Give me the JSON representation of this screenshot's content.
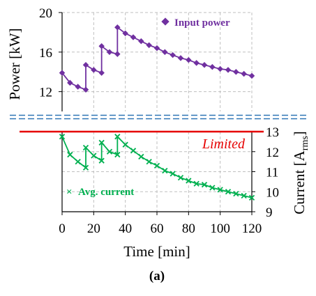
{
  "chart_data": [
    {
      "type": "line",
      "panel": "upper",
      "ylabel": "Power [kW]",
      "ylim": [
        10,
        20
      ],
      "yticks": [
        "12",
        "16",
        "20"
      ],
      "xlim": [
        0,
        120
      ],
      "grid": true,
      "legend_position": "top-right",
      "series": [
        {
          "name": "Input power",
          "marker": "diamond",
          "color": "#7030a0",
          "x": [
            0,
            5,
            10,
            15,
            15,
            20,
            25,
            25,
            30,
            35,
            35,
            40,
            45,
            50,
            55,
            60,
            65,
            70,
            75,
            80,
            85,
            90,
            95,
            100,
            105,
            110,
            115,
            120
          ],
          "y": [
            13.9,
            12.9,
            12.5,
            12.2,
            14.7,
            14.2,
            13.9,
            16.6,
            16.0,
            15.8,
            18.5,
            17.9,
            17.5,
            17.1,
            16.7,
            16.4,
            16.0,
            15.7,
            15.4,
            15.2,
            14.9,
            14.7,
            14.5,
            14.3,
            14.2,
            14.0,
            13.8,
            13.6
          ]
        }
      ]
    },
    {
      "type": "line",
      "panel": "lower",
      "xlabel": "Time [min]",
      "ylabel": "Current [A_rms]",
      "ylabel_main": "Current [A",
      "ylabel_sub": "rms",
      "ylabel_end": "]",
      "ylim": [
        9,
        13
      ],
      "yticks": [
        "9",
        "10",
        "11",
        "12",
        "13"
      ],
      "xlim": [
        0,
        120
      ],
      "xticks": [
        "0",
        "20",
        "40",
        "60",
        "80",
        "100",
        "120"
      ],
      "grid": true,
      "legend_position": "bottom-left",
      "limit_line": {
        "value": 13,
        "label": "Limited",
        "color": "#e60000"
      },
      "series": [
        {
          "name": "Avg. current",
          "marker": "x",
          "color": "#00b050",
          "x": [
            0,
            5,
            10,
            15,
            15,
            20,
            25,
            25,
            30,
            35,
            35,
            40,
            45,
            50,
            55,
            60,
            65,
            70,
            75,
            80,
            85,
            90,
            95,
            100,
            105,
            110,
            115,
            120
          ],
          "y": [
            12.75,
            11.85,
            11.5,
            11.2,
            12.2,
            11.8,
            11.55,
            12.45,
            12.0,
            11.85,
            12.75,
            12.35,
            12.05,
            11.75,
            11.5,
            11.3,
            11.05,
            10.9,
            10.7,
            10.55,
            10.4,
            10.35,
            10.2,
            10.1,
            10.0,
            9.9,
            9.8,
            9.7
          ]
        }
      ]
    }
  ],
  "caption": "(a)"
}
